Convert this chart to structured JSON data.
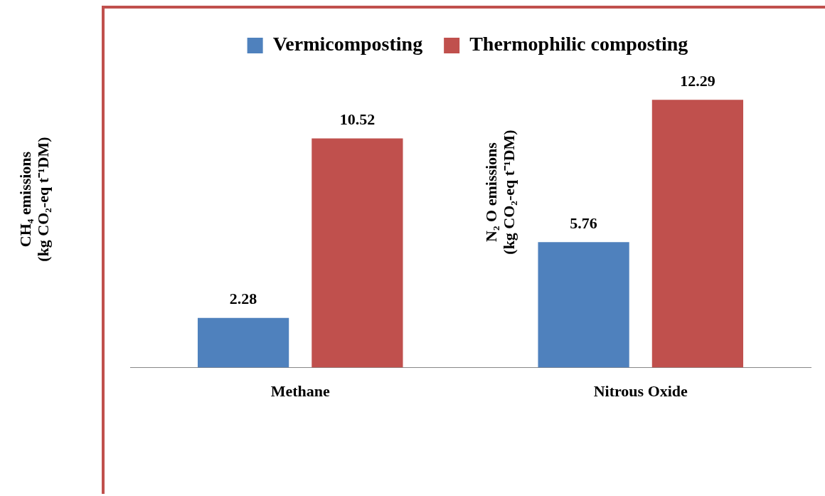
{
  "chart_data": {
    "type": "bar",
    "categories": [
      "Methane",
      "Nitrous Oxide"
    ],
    "series": [
      {
        "name": "Vermicomposting",
        "color": "#4f81bd",
        "values": [
          2.28,
          5.76
        ]
      },
      {
        "name": "Thermophilic composting",
        "color": "#c0504d",
        "values": [
          10.52,
          12.29
        ]
      }
    ],
    "ylabel": "CH₄ emissions\n(kg CO₂-eq t⁻¹DM)",
    "annotations": [
      "N₂ O emissions\n(kg CO₂-eq t⁻¹DM)"
    ],
    "tick_labels": "x",
    "data_labels": true,
    "legend": "top",
    "grid": false
  }
}
